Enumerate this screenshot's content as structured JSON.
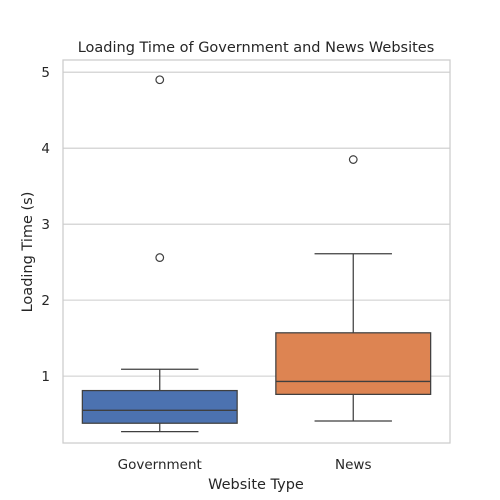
{
  "chart_data": {
    "type": "box",
    "title": "Loading Time of Government and News Websites",
    "xlabel": "Website Type",
    "ylabel": "Loading Time (s)",
    "ylim": [
      0.12,
      5.16
    ],
    "yticks": [
      1,
      2,
      3,
      4,
      5
    ],
    "grid": true,
    "categories": [
      "Government",
      "News"
    ],
    "boxes": [
      {
        "category": "Government",
        "color": "#4c72b0",
        "whisker_low": 0.27,
        "q1": 0.38,
        "median": 0.55,
        "q3": 0.81,
        "whisker_high": 1.09,
        "outliers": [
          2.56,
          4.9
        ]
      },
      {
        "category": "News",
        "color": "#dd8452",
        "whisker_low": 0.41,
        "q1": 0.76,
        "median": 0.93,
        "q3": 1.57,
        "whisker_high": 2.61,
        "outliers": [
          3.85
        ]
      }
    ]
  }
}
